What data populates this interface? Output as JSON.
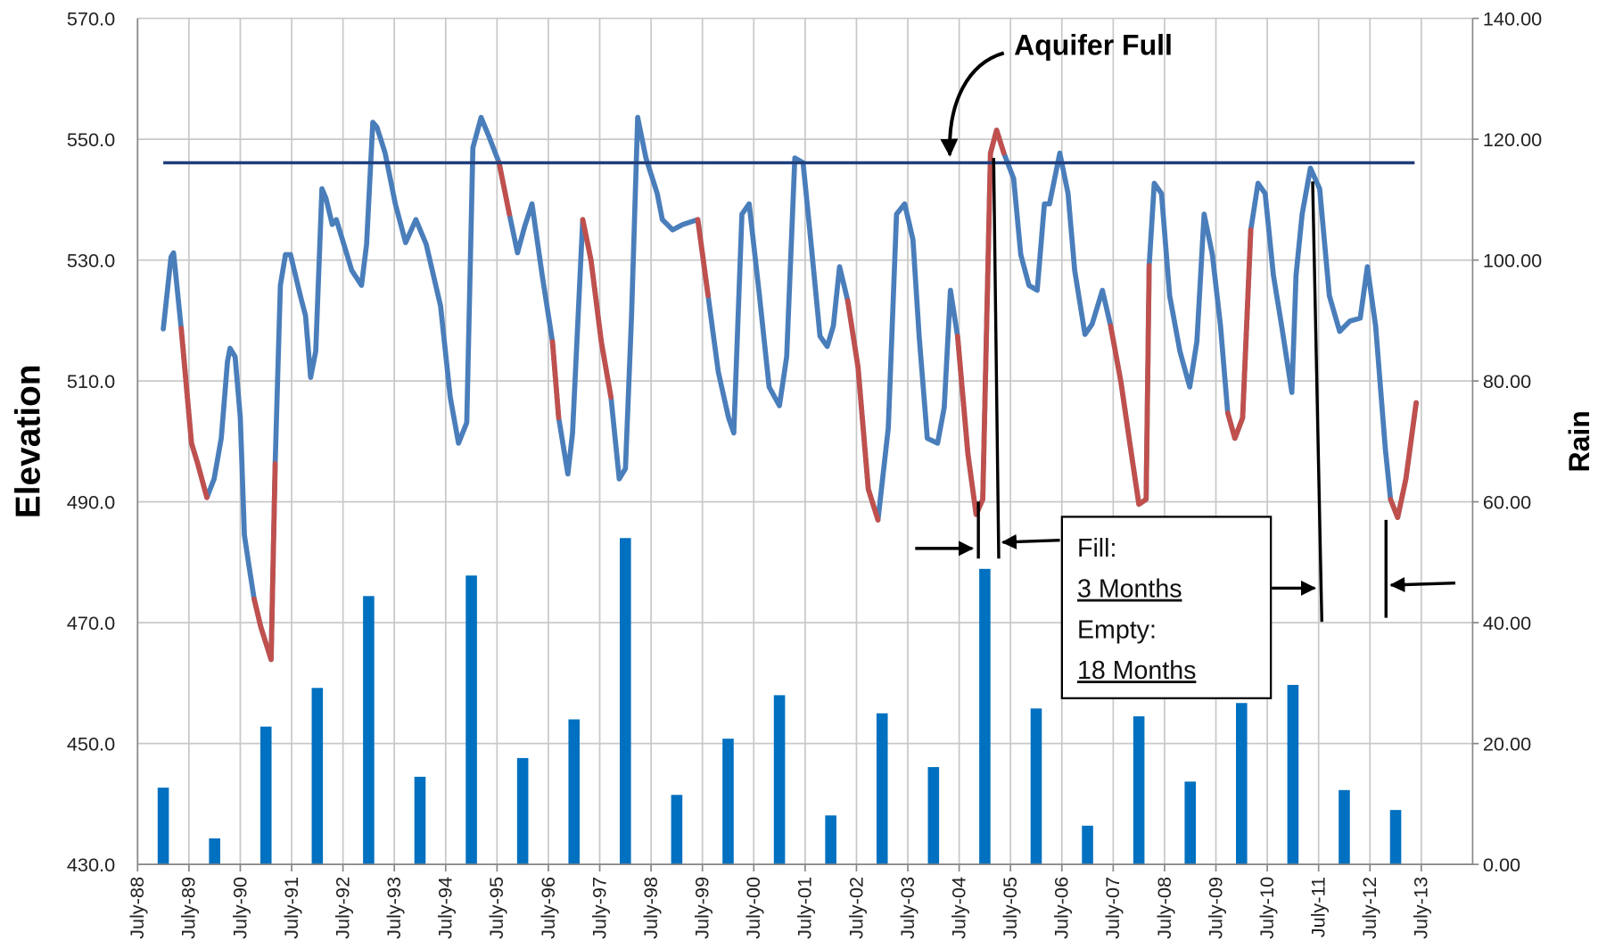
{
  "chart_data": {
    "type": "line",
    "ylabel": "Elevation",
    "y2label": "Rain",
    "grid": true,
    "xlim": [
      1988.5,
      2014.5
    ],
    "xticks": [
      {
        "value": 1988.5,
        "label": "July-88"
      },
      {
        "value": 1989.5,
        "label": "July-89"
      },
      {
        "value": 1990.5,
        "label": "July-90"
      },
      {
        "value": 1991.5,
        "label": "July-91"
      },
      {
        "value": 1992.5,
        "label": "July-92"
      },
      {
        "value": 1993.5,
        "label": "July-93"
      },
      {
        "value": 1994.5,
        "label": "July-94"
      },
      {
        "value": 1995.5,
        "label": "July-95"
      },
      {
        "value": 1996.5,
        "label": "July-96"
      },
      {
        "value": 1997.5,
        "label": "July-97"
      },
      {
        "value": 1998.5,
        "label": "July-98"
      },
      {
        "value": 1999.5,
        "label": "July-99"
      },
      {
        "value": 2000.5,
        "label": "July-00"
      },
      {
        "value": 2001.5,
        "label": "July-01"
      },
      {
        "value": 2002.5,
        "label": "July-02"
      },
      {
        "value": 2003.5,
        "label": "July-03"
      },
      {
        "value": 2004.5,
        "label": "July-04"
      },
      {
        "value": 2005.5,
        "label": "July-05"
      },
      {
        "value": 2006.5,
        "label": "July-06"
      },
      {
        "value": 2007.5,
        "label": "July-07"
      },
      {
        "value": 2008.5,
        "label": "July-08"
      },
      {
        "value": 2009.5,
        "label": "July-09"
      },
      {
        "value": 2010.5,
        "label": "July-10"
      },
      {
        "value": 2011.5,
        "label": "July-11"
      },
      {
        "value": 2012.5,
        "label": "July-12"
      },
      {
        "value": 2013.5,
        "label": "July-13"
      }
    ],
    "ylim": [
      430,
      570
    ],
    "yticks": [
      {
        "value": 430,
        "label": "430.0"
      },
      {
        "value": 450,
        "label": "450.0"
      },
      {
        "value": 470,
        "label": "470.0"
      },
      {
        "value": 490,
        "label": "490.0"
      },
      {
        "value": 510,
        "label": "510.0"
      },
      {
        "value": 530,
        "label": "530.0"
      },
      {
        "value": 550,
        "label": "550.0"
      },
      {
        "value": 570,
        "label": "570.0"
      }
    ],
    "y2lim": [
      0,
      140
    ],
    "y2ticks": [
      {
        "value": 0,
        "label": "0.00"
      },
      {
        "value": 20,
        "label": "20.00"
      },
      {
        "value": 40,
        "label": "40.00"
      },
      {
        "value": 60,
        "label": "60.00"
      },
      {
        "value": 80,
        "label": "80.00"
      },
      {
        "value": 100,
        "label": "100.00"
      },
      {
        "value": 120,
        "label": "120.00"
      },
      {
        "value": 140,
        "label": "140.00"
      }
    ],
    "x": [
      1989.0,
      1989.15,
      1989.2,
      1989.35,
      1989.55,
      1989.67,
      1989.85,
      1989.99,
      1990.13,
      1990.25,
      1990.3,
      1990.4,
      1990.5,
      1990.58,
      1990.67,
      1990.77,
      1990.9,
      1991.1,
      1991.18,
      1991.28,
      1991.38,
      1991.48,
      1991.67,
      1991.77,
      1991.87,
      1991.97,
      1992.09,
      1992.17,
      1992.29,
      1992.37,
      1992.49,
      1992.67,
      1992.86,
      1992.96,
      1993.08,
      1993.16,
      1993.32,
      1993.52,
      1993.72,
      1993.92,
      1994.12,
      1994.4,
      1994.59,
      1994.75,
      1994.91,
      1995.03,
      1995.19,
      1995.35,
      1995.54,
      1995.74,
      1995.9,
      1996.04,
      1996.18,
      1996.38,
      1996.58,
      1996.7,
      1996.88,
      1996.97,
      1997.17,
      1997.33,
      1997.53,
      1997.72,
      1997.88,
      1998.0,
      1998.12,
      1998.24,
      1998.4,
      1998.62,
      1998.72,
      1998.92,
      1999.12,
      1999.41,
      1999.61,
      1999.81,
      2000.01,
      2000.11,
      2000.27,
      2000.41,
      2000.61,
      2000.8,
      2001.0,
      2001.14,
      2001.3,
      2001.46,
      2001.6,
      2001.79,
      2001.93,
      2002.05,
      2002.17,
      2002.33,
      2002.53,
      2002.73,
      2002.92,
      2003.12,
      2003.28,
      2003.44,
      2003.6,
      2003.72,
      2003.88,
      2004.08,
      2004.21,
      2004.33,
      2004.47,
      2004.67,
      2004.83,
      2004.96,
      2005.11,
      2005.23,
      2005.37,
      2005.56,
      2005.7,
      2005.86,
      2006.02,
      2006.16,
      2006.26,
      2006.46,
      2006.62,
      2006.75,
      2006.95,
      2007.09,
      2007.29,
      2007.45,
      2007.65,
      2007.84,
      2008.0,
      2008.14,
      2008.2,
      2008.3,
      2008.44,
      2008.6,
      2008.8,
      2008.99,
      2009.13,
      2009.27,
      2009.43,
      2009.59,
      2009.73,
      2009.87,
      2010.02,
      2010.18,
      2010.32,
      2010.46,
      2010.62,
      2010.78,
      2010.98,
      2011.06,
      2011.18,
      2011.34,
      2011.52,
      2011.71,
      2011.91,
      2012.11,
      2012.31,
      2012.45,
      2012.61,
      2012.8,
      2012.9,
      2013.04,
      2013.2,
      2013.4
    ],
    "series": [
      {
        "color": "#4a7ebb",
        "values": [
          518.6,
          530.5,
          531.2,
          518.7,
          499.7,
          496.3,
          490.7,
          493.8,
          500.5,
          513.2,
          515.4,
          514,
          503.9,
          484.5,
          479.4,
          473.9,
          469.3,
          463.9,
          496.3,
          525.8,
          530.9,
          530.9,
          524.1,
          520.8,
          510.6,
          514.9,
          541.8,
          540.2,
          535.9,
          536.7,
          533.4,
          528.3,
          525.8,
          532.6,
          552.8,
          552,
          547.7,
          539.3,
          532.9,
          536.7,
          532.6,
          522.4,
          507.3,
          499.7,
          503.1,
          548.6,
          553.6,
          550.3,
          546.1,
          537.6,
          531.2,
          535.6,
          539.3,
          527.5,
          516.5,
          503.9,
          494.6,
          501.4,
          536.7,
          530,
          516.5,
          507.3,
          493.8,
          495.5,
          520.8,
          553.6,
          546.9,
          541,
          536.7,
          535,
          535.9,
          536.7,
          524.1,
          511.5,
          503.9,
          501.4,
          537.6,
          539.3,
          524.1,
          509,
          505.9,
          514,
          546.9,
          546.1,
          534.2,
          517.4,
          515.7,
          519.1,
          528.9,
          523.3,
          512.3,
          492.1,
          487,
          502.2,
          537.6,
          539.3,
          533.4,
          517.4,
          500.5,
          499.7,
          505.6,
          525,
          517.4,
          498,
          487.9,
          490.4,
          547.7,
          551.5,
          547.7,
          543.5,
          530.9,
          525.8,
          525,
          539.3,
          539.3,
          547.7,
          541,
          528.3,
          517.7,
          519.4,
          525,
          519.1,
          509.8,
          498.8,
          489.6,
          490.4,
          529.1,
          542.7,
          541,
          524.1,
          514.9,
          509,
          516.5,
          537.6,
          530.9,
          519.1,
          504.7,
          500.5,
          503.9,
          535,
          542.7,
          541,
          527.5,
          519.1,
          508.1,
          527.5,
          537.6,
          545.2,
          541.8,
          524.1,
          518.2,
          519.9,
          520.4,
          528.9,
          519.1,
          498.8,
          490.4,
          487.4,
          493.8,
          506.4
        ]
      },
      {
        "color": "#c0504d",
        "values": [
          null,
          null,
          null,
          518.7,
          499.7,
          496.3,
          490.7,
          null,
          null,
          null,
          null,
          null,
          null,
          null,
          null,
          473.9,
          469.3,
          463.9,
          496.3,
          null,
          null,
          null,
          null,
          null,
          null,
          null,
          null,
          null,
          null,
          null,
          null,
          null,
          null,
          null,
          null,
          null,
          null,
          null,
          null,
          null,
          null,
          null,
          null,
          null,
          null,
          null,
          null,
          null,
          546.1,
          537.6,
          null,
          null,
          null,
          null,
          516.5,
          503.9,
          null,
          null,
          536.7,
          530,
          516.5,
          507.3,
          null,
          null,
          null,
          null,
          null,
          null,
          null,
          null,
          null,
          536.7,
          524.1,
          null,
          null,
          null,
          null,
          null,
          null,
          null,
          null,
          null,
          null,
          null,
          null,
          null,
          null,
          null,
          null,
          523.3,
          512.3,
          492.1,
          487,
          null,
          null,
          null,
          null,
          null,
          null,
          null,
          null,
          null,
          517.4,
          498,
          487.9,
          490.4,
          547.7,
          551.5,
          547.7,
          null,
          null,
          null,
          null,
          null,
          null,
          null,
          null,
          null,
          null,
          null,
          null,
          519.1,
          509.8,
          498.8,
          489.6,
          490.4,
          529.1,
          null,
          null,
          null,
          null,
          null,
          null,
          null,
          null,
          null,
          504.7,
          500.5,
          503.9,
          535,
          null,
          null,
          null,
          null,
          null,
          null,
          null,
          null,
          null,
          null,
          null,
          null,
          null,
          null,
          null,
          null,
          490.4,
          487.4,
          493.8,
          506.4
        ]
      },
      {
        "type": "bar",
        "axis": "y2",
        "color": "#0070c0",
        "x": [
          1989.0,
          1990.0,
          1991.0,
          1992.0,
          1993.0,
          1994.0,
          1995.0,
          1996.0,
          1997.0,
          1998.0,
          1999.0,
          2000.0,
          2001.0,
          2002.0,
          2003.0,
          2004.0,
          2005.0,
          2006.0,
          2007.0,
          2008.0,
          2009.0,
          2010.0,
          2011.0,
          2012.0,
          2013.0
        ],
        "values": [
          12.7,
          4.3,
          22.8,
          29.2,
          44.4,
          14.5,
          47.8,
          17.6,
          24,
          54,
          11.5,
          20.8,
          28,
          8.1,
          25,
          16.1,
          48.9,
          25.8,
          6.4,
          24.5,
          13.7,
          26.7,
          29.7,
          12.3,
          9
        ]
      }
    ],
    "reference": {
      "color": "#1f3d7a",
      "x": [
        1989.0,
        2013.37
      ],
      "y": 546.1
    },
    "annotations": {
      "aquifer": "Aquifer Full",
      "box": [
        "Fill:",
        "3 Months",
        "Empty:",
        "18 Months"
      ]
    }
  }
}
